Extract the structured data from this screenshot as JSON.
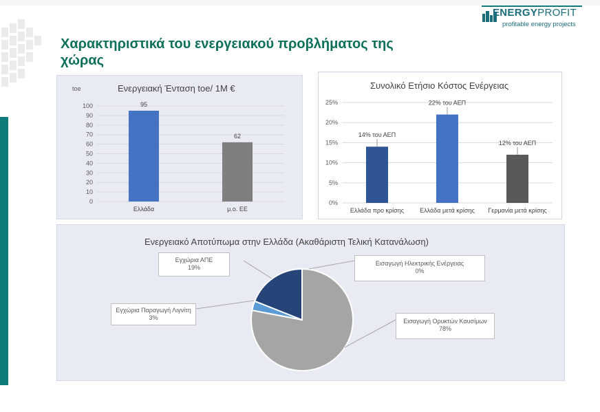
{
  "header": {
    "title": "Χαρακτηριστικά του ενεργειακού προβλήματος της χώρας"
  },
  "logo": {
    "brand_energy": "ENERGY",
    "brand_profit": "PROFIT",
    "tagline": "profitable energy projects"
  },
  "colors": {
    "teal": "#0e7c7b",
    "title_green": "#0e6f5a",
    "panel_bg": "#e8ebf4"
  },
  "chart_data": [
    {
      "type": "bar",
      "title": "Ενεργειακή Ένταση toe/ 1M €",
      "ylabel": "toe",
      "categories": [
        "Ελλάδα",
        "μ.ο. ΕΕ"
      ],
      "values": [
        95,
        62
      ],
      "data_labels": [
        "95",
        "62"
      ],
      "colors": [
        "#4472c4",
        "#7f7f7f"
      ],
      "ylim": [
        0,
        100
      ],
      "yticks": [
        "100",
        "90",
        "80",
        "70",
        "60",
        "50",
        "40",
        "30",
        "20",
        "10",
        "0"
      ],
      "grid": true
    },
    {
      "type": "bar",
      "title": "Συνολικό Ετήσιο Κόστος Ενέργειας",
      "categories": [
        "Ελλάδα προ κρίσης",
        "Ελλάδα μετά κρίσης",
        "Γερμανία μετά κρίσης"
      ],
      "values": [
        14,
        22,
        12
      ],
      "data_labels": [
        "14% του ΑΕΠ",
        "22% του ΑΕΠ",
        "12% του ΑΕΠ"
      ],
      "colors": [
        "#2f5597",
        "#4472c4",
        "#595959"
      ],
      "ylim": [
        0,
        25
      ],
      "yticks": [
        "25%",
        "20%",
        "15%",
        "10%",
        "5%",
        "0%"
      ],
      "grid": true
    },
    {
      "type": "pie",
      "title": "Ενεργειακό Αποτύπωμα στην Ελλάδα (Ακαθάριστη Τελική Κατανάλωση)",
      "slices": [
        {
          "label": "Εισαγωγή Ηλεκτρικής Ενέργειας",
          "value_label": "0%",
          "value": 0,
          "color": "#4472c4"
        },
        {
          "label": "Εισαγωγή Ορυκτών Καυσίμων",
          "value_label": "78%",
          "value": 78,
          "color": "#a5a5a5"
        },
        {
          "label": "Εγχώρια Παραγωγή Λιγνίτη",
          "value_label": "3%",
          "value": 3,
          "color": "#5b9bd5"
        },
        {
          "label": "Εγχώρια ΑΠΕ",
          "value_label": "19%",
          "value": 19,
          "color": "#264478"
        }
      ]
    }
  ]
}
